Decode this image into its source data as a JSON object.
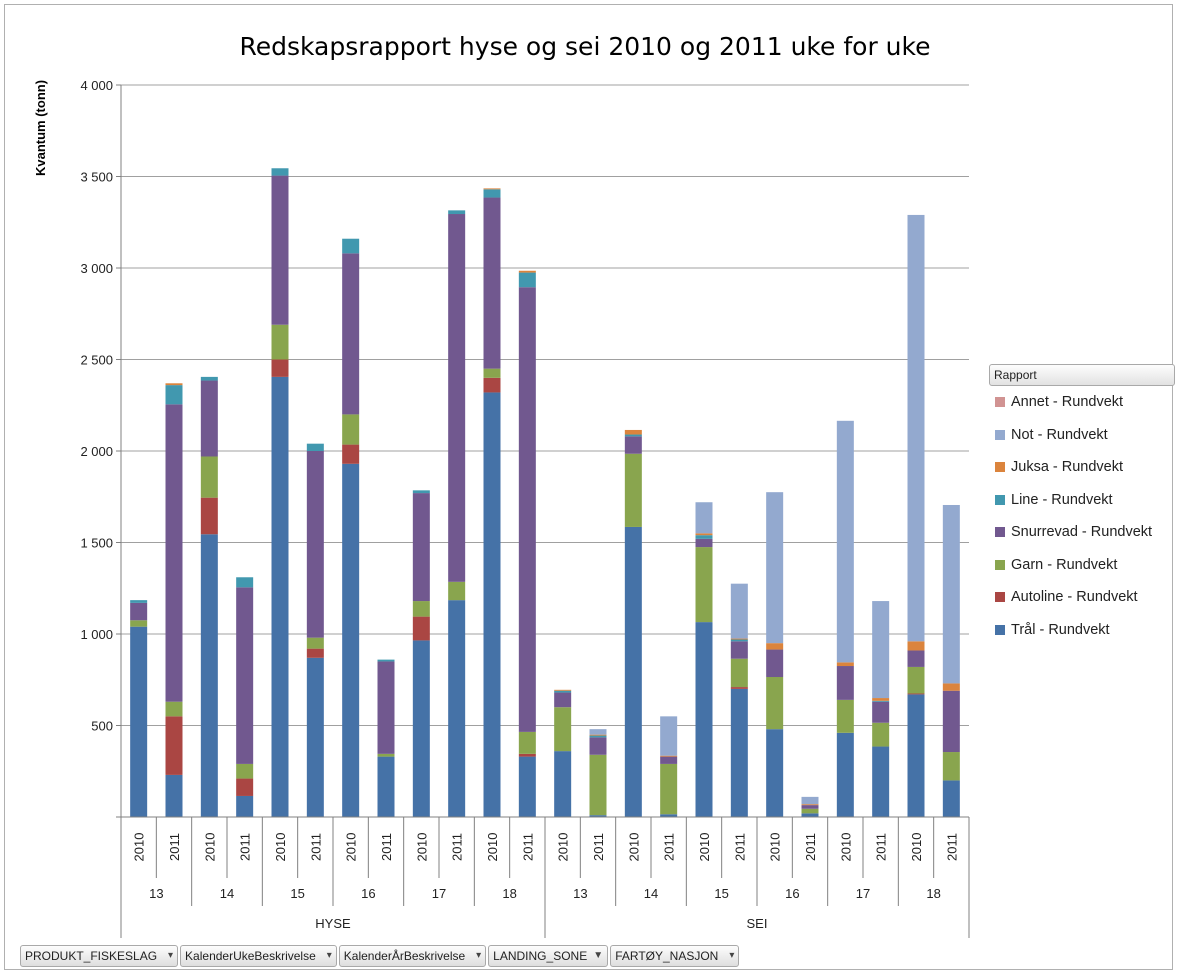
{
  "filters": [
    {
      "label": "PRODUKT_FISKESLAG",
      "icon": "filter-icon"
    },
    {
      "label": "KalenderUkeBeskrivelse",
      "icon": "filter-icon"
    },
    {
      "label": "KalenderÅrBeskrivelse",
      "icon": "filter-icon"
    },
    {
      "label": "LANDING_SONE",
      "icon": "dropdown-icon"
    },
    {
      "label": "FARTØY_NASJON",
      "icon": "filter-icon"
    }
  ],
  "legend_title": "Rapport",
  "chart_data": {
    "type": "bar",
    "stacked": true,
    "title": "Redskapsrapport hyse og sei 2010 og 2011 uke for uke",
    "ylabel": "Kvantum (tonn)",
    "ylim": [
      0,
      4000
    ],
    "yticks": [
      "",
      "500",
      "1 000",
      "1 500",
      "2 000",
      "2 500",
      "3 000",
      "3 500",
      "4 000"
    ],
    "grid": true,
    "legend_position": "right",
    "groups": [
      {
        "name": "HYSE",
        "weeks": [
          "13",
          "14",
          "15",
          "16",
          "17",
          "18"
        ]
      },
      {
        "name": "SEI",
        "weeks": [
          "13",
          "14",
          "15",
          "16",
          "17",
          "18"
        ]
      }
    ],
    "years": [
      "2010",
      "2011"
    ],
    "series": [
      {
        "name": "Trål - Rundvekt",
        "color": "#4572a7",
        "values": [
          1040,
          230,
          1545,
          115,
          2405,
          870,
          1930,
          330,
          965,
          1185,
          2320,
          330,
          360,
          10,
          1585,
          15,
          1065,
          700,
          480,
          20,
          460,
          385,
          670,
          200
        ]
      },
      {
        "name": "Autoline - Rundvekt",
        "color": "#aa4643",
        "values": [
          0,
          320,
          200,
          95,
          95,
          50,
          105,
          0,
          130,
          0,
          80,
          15,
          0,
          0,
          0,
          0,
          0,
          10,
          0,
          0,
          0,
          0,
          5,
          0
        ]
      },
      {
        "name": "Garn - Rundvekt",
        "color": "#89a54e",
        "values": [
          35,
          80,
          225,
          80,
          190,
          60,
          165,
          15,
          85,
          100,
          50,
          120,
          240,
          330,
          400,
          275,
          410,
          155,
          285,
          25,
          180,
          130,
          145,
          155
        ]
      },
      {
        "name": "Snurrevad - Rundvekt",
        "color": "#71588f",
        "values": [
          95,
          1625,
          415,
          965,
          815,
          1020,
          880,
          505,
          590,
          2010,
          935,
          2430,
          80,
          95,
          95,
          40,
          45,
          95,
          150,
          20,
          185,
          115,
          90,
          335
        ]
      },
      {
        "name": "Line - Rundvekt",
        "color": "#4198af",
        "values": [
          15,
          105,
          20,
          55,
          40,
          40,
          80,
          10,
          15,
          20,
          45,
          80,
          10,
          10,
          10,
          0,
          20,
          10,
          0,
          0,
          0,
          5,
          0,
          0
        ]
      },
      {
        "name": "Juksa - Rundvekt",
        "color": "#db843d",
        "values": [
          0,
          10,
          0,
          0,
          0,
          0,
          0,
          0,
          0,
          0,
          5,
          10,
          5,
          5,
          25,
          5,
          10,
          5,
          35,
          5,
          20,
          15,
          50,
          40
        ]
      },
      {
        "name": "Not - Rundvekt",
        "color": "#93a9cf",
        "values": [
          0,
          0,
          0,
          0,
          0,
          0,
          0,
          0,
          0,
          0,
          0,
          0,
          0,
          30,
          0,
          215,
          170,
          300,
          825,
          40,
          1320,
          530,
          2330,
          975
        ]
      },
      {
        "name": "Annet - Rundvekt",
        "color": "#d19392",
        "values": [
          0,
          0,
          0,
          0,
          0,
          0,
          0,
          0,
          0,
          0,
          0,
          0,
          0,
          0,
          0,
          0,
          0,
          0,
          0,
          0,
          0,
          0,
          0,
          0
        ]
      }
    ]
  }
}
